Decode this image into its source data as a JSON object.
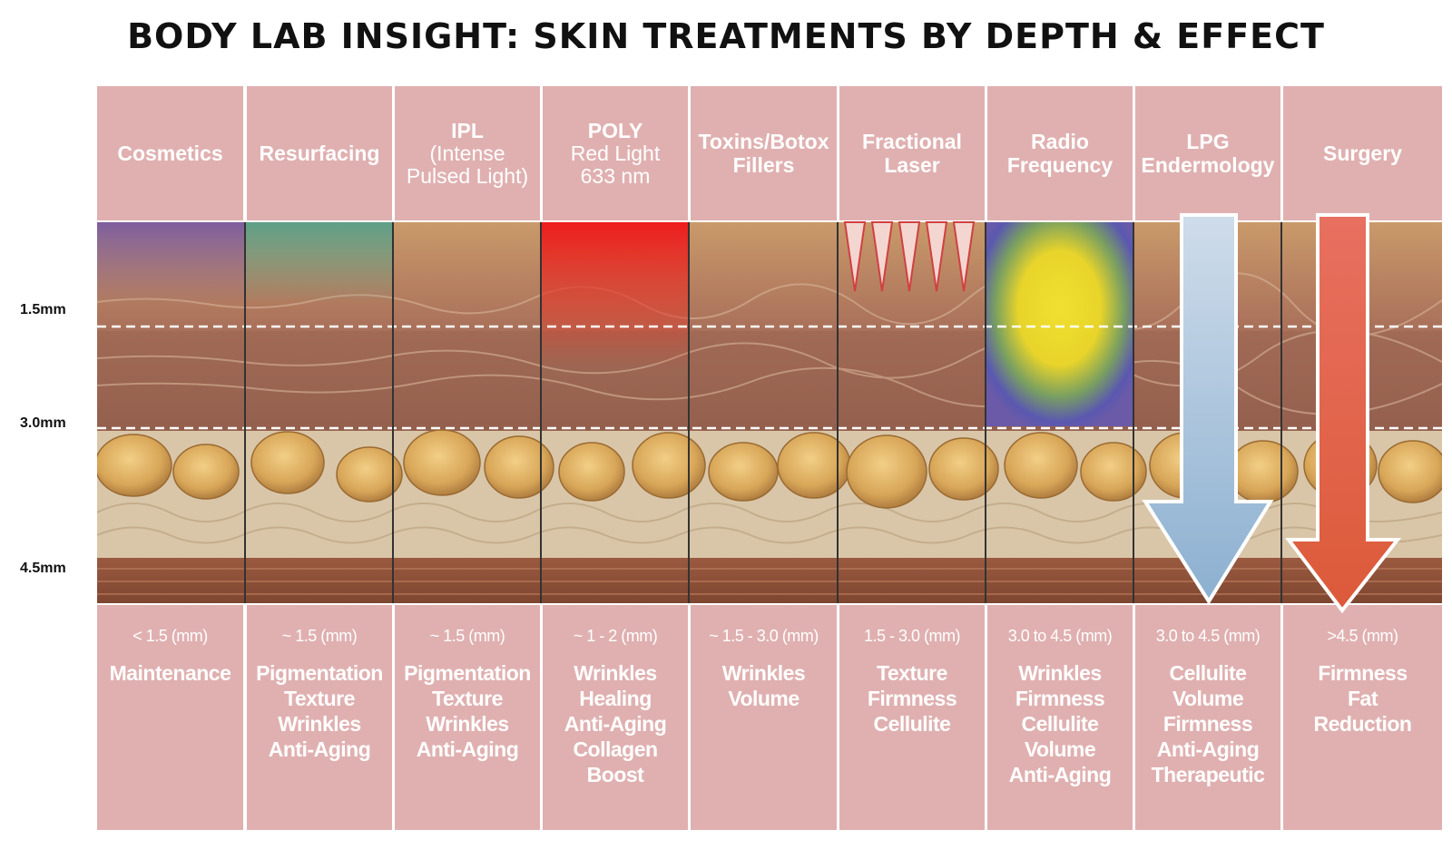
{
  "title": "BODY LAB INSIGHT: SKIN TREATMENTS BY DEPTH & EFFECT",
  "depth_labels": [
    "1.5mm",
    "3.0mm",
    "4.5mm"
  ],
  "treatments": [
    {
      "name": "Cosmetics",
      "subtitle": [],
      "depth": "< 1.5 (mm)",
      "effects": [
        "Maintenance"
      ]
    },
    {
      "name": "Resurfacing",
      "subtitle": [],
      "depth": "~ 1.5 (mm)",
      "effects": [
        "Pigmentation",
        "Texture",
        "Wrinkles",
        "Anti-Aging"
      ]
    },
    {
      "name": "IPL",
      "subtitle": [
        "(Intense",
        "Pulsed Light)"
      ],
      "depth": "~ 1.5 (mm)",
      "effects": [
        "Pigmentation",
        "Texture",
        "Wrinkles",
        "Anti-Aging"
      ]
    },
    {
      "name": "POLY",
      "subtitle": [
        "Red Light",
        "633 nm"
      ],
      "depth": "~ 1 - 2 (mm)",
      "effects": [
        "Wrinkles",
        "Healing",
        "Anti-Aging",
        "Collagen",
        "Boost"
      ]
    },
    {
      "name": "Toxins/Botox",
      "name2": "Fillers",
      "subtitle": [],
      "depth": "~ 1.5 - 3.0 (mm)",
      "effects": [
        "Wrinkles",
        "Volume"
      ]
    },
    {
      "name": "Fractional",
      "name2": "Laser",
      "subtitle": [],
      "depth": "1.5 - 3.0 (mm)",
      "effects": [
        "Texture",
        "Firmness",
        "Cellulite"
      ]
    },
    {
      "name": "Radio",
      "name2": "Frequency",
      "subtitle": [],
      "depth": "3.0 to 4.5 (mm)",
      "effects": [
        "Wrinkles",
        "Firmness",
        "Cellulite",
        "Volume",
        "Anti-Aging"
      ]
    },
    {
      "name": "LPG",
      "name2": "Endermology",
      "subtitle": [],
      "depth": "3.0 to 4.5 (mm)",
      "effects": [
        "Cellulite",
        "Volume",
        "Firmness",
        "Anti-Aging",
        "Therapeutic"
      ]
    },
    {
      "name": "Surgery",
      "subtitle": [],
      "depth": ">4.5 (mm)",
      "effects": [
        "Firmness",
        "Fat",
        "Reduction"
      ]
    }
  ],
  "colors": {
    "panel": "#e0b0b0",
    "radio_core": "#e8d830",
    "arrow_lpg": "#9dbcd8",
    "arrow_surgery": "#e06048",
    "poly_red": "#e82020"
  }
}
